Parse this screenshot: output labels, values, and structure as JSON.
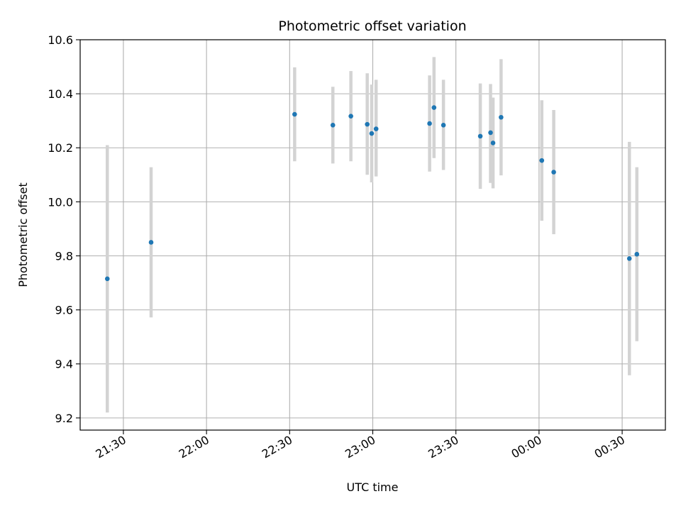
{
  "chart_data": {
    "type": "scatter",
    "title": "Photometric offset variation",
    "xlabel": "UTC time",
    "ylabel": "Photometric offset",
    "x_tick_labels": [
      "21:30",
      "22:00",
      "22:30",
      "23:00",
      "23:30",
      "00:00",
      "00:30"
    ],
    "x_ticks_minutes": [
      0,
      30,
      60,
      90,
      120,
      150,
      180
    ],
    "y_ticks": [
      9.2,
      9.4,
      9.6,
      9.8,
      10.0,
      10.2,
      10.4,
      10.6
    ],
    "y_tick_labels": [
      "9.2",
      "9.4",
      "9.6",
      "9.8",
      "10.0",
      "10.2",
      "10.4",
      "10.6"
    ],
    "xlim_minutes": [
      -15.6,
      195.6
    ],
    "ylim": [
      9.155,
      10.6
    ],
    "grid": true,
    "colors": {
      "points": "#1f77b4",
      "errorbars": "#d3d3d3",
      "grid": "#b0b0b0"
    },
    "series": [
      {
        "points": [
          {
            "t": -5.8,
            "y": 9.715,
            "lo": 9.22,
            "hi": 10.21
          },
          {
            "t": 10.0,
            "y": 9.85,
            "lo": 9.572,
            "hi": 10.128
          },
          {
            "t": 61.8,
            "y": 10.324,
            "lo": 10.15,
            "hi": 10.498
          },
          {
            "t": 75.6,
            "y": 10.284,
            "lo": 10.142,
            "hi": 10.426
          },
          {
            "t": 82.1,
            "y": 10.317,
            "lo": 10.15,
            "hi": 10.484
          },
          {
            "t": 88.0,
            "y": 10.287,
            "lo": 10.1,
            "hi": 10.476
          },
          {
            "t": 89.6,
            "y": 10.253,
            "lo": 10.072,
            "hi": 10.434
          },
          {
            "t": 91.2,
            "y": 10.27,
            "lo": 10.094,
            "hi": 10.452
          },
          {
            "t": 110.5,
            "y": 10.29,
            "lo": 10.112,
            "hi": 10.468
          },
          {
            "t": 112.1,
            "y": 10.349,
            "lo": 10.162,
            "hi": 10.536
          },
          {
            "t": 115.5,
            "y": 10.284,
            "lo": 10.118,
            "hi": 10.452
          },
          {
            "t": 128.8,
            "y": 10.243,
            "lo": 10.048,
            "hi": 10.438
          },
          {
            "t": 132.5,
            "y": 10.256,
            "lo": 10.07,
            "hi": 10.436
          },
          {
            "t": 133.4,
            "y": 10.218,
            "lo": 10.05,
            "hi": 10.386
          },
          {
            "t": 136.3,
            "y": 10.313,
            "lo": 10.098,
            "hi": 10.528
          },
          {
            "t": 151.0,
            "y": 10.153,
            "lo": 9.93,
            "hi": 10.376
          },
          {
            "t": 155.3,
            "y": 10.11,
            "lo": 9.88,
            "hi": 10.34
          },
          {
            "t": 182.6,
            "y": 9.79,
            "lo": 9.358,
            "hi": 10.222
          },
          {
            "t": 185.3,
            "y": 9.806,
            "lo": 9.484,
            "hi": 10.128
          }
        ]
      }
    ]
  }
}
